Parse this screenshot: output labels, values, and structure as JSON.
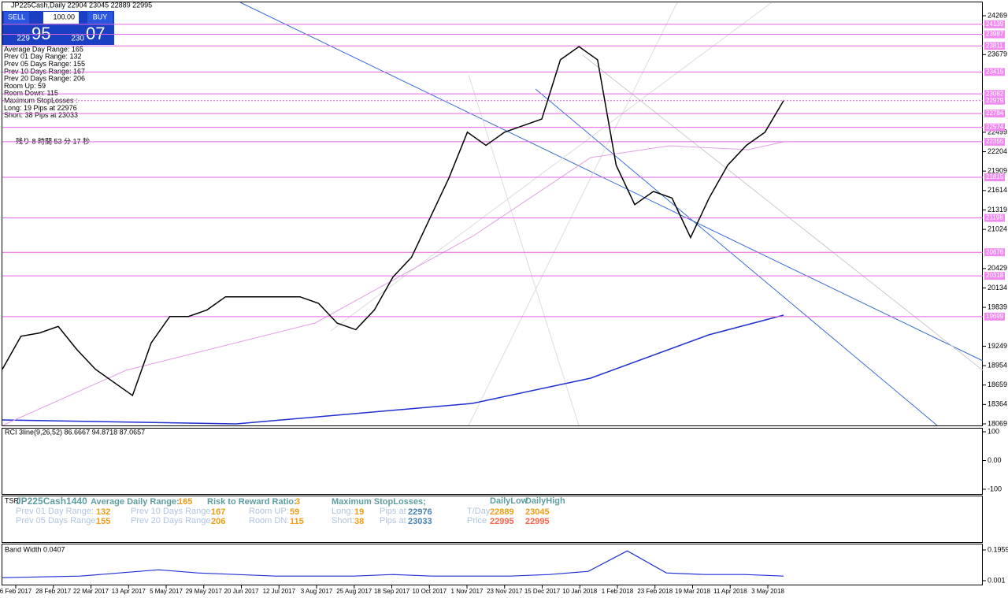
{
  "header": "JP225Cash,Daily  22904 23045 22889 22995",
  "trade_panel": {
    "sell": "SELL",
    "lot": "100.00",
    "buy": "BUY",
    "bid_small": "229",
    "bid_big": "95",
    "ask_small": "230",
    "ask_big": "07"
  },
  "info_lines": [
    "Average Day  Range: 165",
    "Prev 01  Day  Range: 132",
    "Prev 05  Days Range: 155",
    "Prev 10  Days Range: 167",
    "Prev 20  Days Range: 206",
    "Room Up:       59",
    "Room Down:  115",
    "Maximum StopLosses :",
    "Long:  19 Pips at 22976",
    "Short: 38 Pips at 23033"
  ],
  "countdown": "残り 8 時間 53 分 17 秒",
  "price_axis": {
    "ylim": [
      18069,
      24269
    ],
    "ticks": [
      24269,
      23679,
      22499,
      22204,
      21909,
      21614,
      21319,
      21024,
      20429,
      20134,
      19839,
      19249,
      18954,
      18659,
      18364,
      18069
    ]
  },
  "levels": [
    24139,
    23987,
    23811,
    23415,
    23082,
    22979,
    22784,
    22574,
    22355,
    21815,
    21198,
    20676,
    20318,
    19699
  ],
  "price_close": [
    18900,
    19400,
    19450,
    19550,
    19200,
    18900,
    18700,
    18500,
    19300,
    19700,
    19700,
    19800,
    20000,
    20000,
    20000,
    20000,
    20000,
    19900,
    19600,
    19500,
    19800,
    20300,
    20600,
    21200,
    21800,
    22500,
    22300,
    22500,
    22600,
    22700,
    23600,
    23800,
    23600,
    22000,
    21400,
    21600,
    21500,
    20900,
    21500,
    22000,
    22300,
    22500,
    22980
  ],
  "dates": [
    "6 Feb 2017",
    "28 Feb 2017",
    "22 Mar 2017",
    "13 Apr 2017",
    "5 May 2017",
    "29 May 2017",
    "20 Jun 2017",
    "12 Jul 2017",
    "3 Aug 2017",
    "25 Aug 2017",
    "18 Sep 2017",
    "10 Oct 2017",
    "1 Nov 2017",
    "23 Nov 2017",
    "15 Dec 2017",
    "10 Jan 2018",
    "1 Feb 2018",
    "23 Feb 2018",
    "19 Mar 2018",
    "11 Apr 2018",
    "3 May 2018"
  ],
  "rci": {
    "title": "RCI 3line(9,26,52) 86.6667 94.8718 87.0657",
    "ticks": [
      100,
      {
        "value": 0,
        "label": "0.00"
      },
      -100
    ]
  },
  "tsr": {
    "label": "TSR",
    "symbol": "JP225Cash1440",
    "adr_label": "Average Daily Range:",
    "adr": "165",
    "rr_label": "Risk to Reward Ratio:",
    "rr": "3",
    "msl_label": "Maximum StopLosses;",
    "daily_low": "DailyLow",
    "daily_high": "DailyHigh",
    "p01_label": "Prev 01 Day Range:",
    "p01": "132",
    "p10_label": "Prev 10 Days Range:",
    "p10": "167",
    "up_label": "Room UP:",
    "up": "59",
    "long_label": "Long:",
    "long": "19",
    "pips1": "Pips at",
    "long_at": "22976",
    "tday": "T/Day",
    "tday_low": "22889",
    "tday_high": "23045",
    "p05_label": "Prev 05 Days Range:",
    "p05": "155",
    "p20_label": "Prev 20 Days Range:",
    "p20": "206",
    "dn_label": "Room DN:",
    "dn": "115",
    "short_label": "Short:",
    "short": "38",
    "pips2": "Pips at",
    "short_at": "23033",
    "price": "Price",
    "price_low": "22995",
    "price_high": "22995"
  },
  "band_width": {
    "title": "Band Width 0.0407",
    "ticks": [
      0.1959,
      0.001
    ],
    "values": [
      0.02,
      0.025,
      0.03,
      0.05,
      0.07,
      0.05,
      0.04,
      0.03,
      0.03,
      0.03,
      0.04,
      0.03,
      0.03,
      0.03,
      0.04,
      0.06,
      0.19,
      0.05,
      0.04,
      0.04,
      0.03
    ]
  }
}
